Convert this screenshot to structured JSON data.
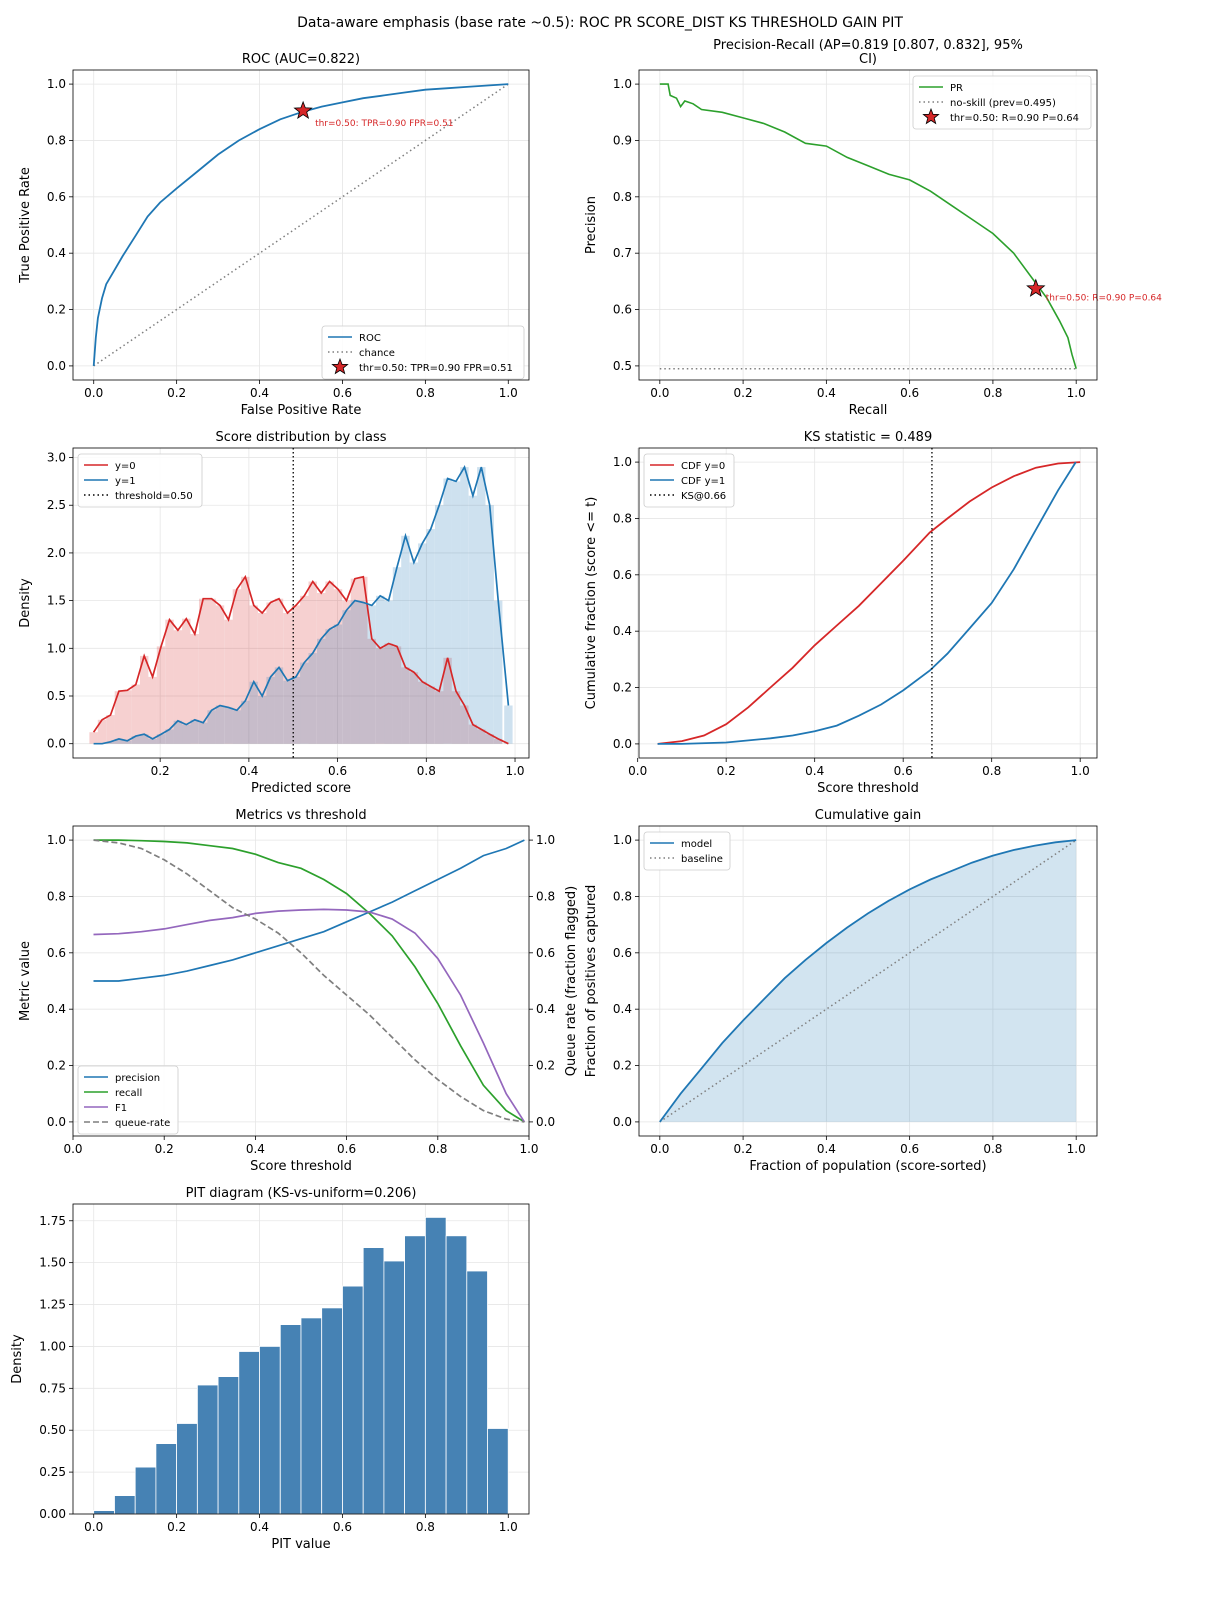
{
  "figure": {
    "suptitle": "Data-aware emphasis (base rate ~0.5): ROC PR SCORE_DIST KS THRESHOLD GAIN PIT",
    "colors": {
      "blue": "#1f77b4",
      "red": "#d62728",
      "green": "#2ca02c",
      "purple": "#9467bd",
      "gray": "#7f7f7f",
      "steel": "#4682b4"
    }
  },
  "chart_data": [
    {
      "id": "roc",
      "type": "line",
      "title": "ROC (AUC=0.822)",
      "xlabel": "False Positive Rate",
      "ylabel": "True Positive Rate",
      "xlim": [
        -0.05,
        1.05
      ],
      "ylim": [
        -0.05,
        1.05
      ],
      "xticks": [
        0.0,
        0.2,
        0.4,
        0.6,
        0.8,
        1.0
      ],
      "yticks": [
        0.0,
        0.2,
        0.4,
        0.6,
        0.8,
        1.0
      ],
      "tick_labels_x": [
        "0.0",
        "0.2",
        "0.4",
        "0.6",
        "0.8",
        "1.0"
      ],
      "tick_labels_y": [
        "0.0",
        "0.2",
        "0.4",
        "0.6",
        "0.8",
        "1.0"
      ],
      "grid": true,
      "legend": "lower-right",
      "series": [
        {
          "name": "ROC",
          "style": "line",
          "color": "#1f77b4",
          "x": [
            0,
            0.005,
            0.01,
            0.02,
            0.03,
            0.05,
            0.07,
            0.1,
            0.13,
            0.16,
            0.2,
            0.25,
            0.3,
            0.35,
            0.4,
            0.45,
            0.5,
            0.55,
            0.6,
            0.65,
            0.7,
            0.75,
            0.8,
            0.85,
            0.9,
            0.95,
            1.0
          ],
          "y": [
            0,
            0.1,
            0.17,
            0.24,
            0.29,
            0.34,
            0.39,
            0.46,
            0.53,
            0.58,
            0.63,
            0.69,
            0.75,
            0.8,
            0.84,
            0.875,
            0.9,
            0.92,
            0.935,
            0.95,
            0.96,
            0.97,
            0.98,
            0.985,
            0.99,
            0.995,
            1.0
          ]
        },
        {
          "name": "chance",
          "style": "dotted",
          "color": "#7f7f7f",
          "x": [
            0,
            1
          ],
          "y": [
            0,
            1
          ]
        }
      ],
      "marker": {
        "name": "thr=0.50: TPR=0.90 FPR=0.51",
        "x": 0.505,
        "y": 0.905,
        "color": "#d62728",
        "annotation": "thr=0.50: TPR=0.90 FPR=0.51"
      }
    },
    {
      "id": "pr",
      "type": "line",
      "title": "Precision-Recall (AP=0.819 [0.807, 0.832], 95%",
      "title_line2": "CI)",
      "xlabel": "Recall",
      "ylabel": "Precision",
      "xlim": [
        -0.05,
        1.05
      ],
      "ylim": [
        0.475,
        1.025
      ],
      "xticks": [
        0.0,
        0.2,
        0.4,
        0.6,
        0.8,
        1.0
      ],
      "yticks": [
        0.5,
        0.6,
        0.7,
        0.8,
        0.9,
        1.0
      ],
      "tick_labels_x": [
        "0.0",
        "0.2",
        "0.4",
        "0.6",
        "0.8",
        "1.0"
      ],
      "tick_labels_y": [
        "0.5",
        "0.6",
        "0.7",
        "0.8",
        "0.9",
        "1.0"
      ],
      "grid": true,
      "legend": "top-right",
      "series": [
        {
          "name": "PR",
          "style": "line",
          "color": "#2ca02c",
          "x": [
            0,
            0.02,
            0.025,
            0.04,
            0.05,
            0.06,
            0.08,
            0.1,
            0.15,
            0.2,
            0.25,
            0.3,
            0.35,
            0.4,
            0.45,
            0.5,
            0.55,
            0.6,
            0.65,
            0.7,
            0.75,
            0.8,
            0.85,
            0.9,
            0.93,
            0.96,
            0.98,
            0.99,
            1.0
          ],
          "y": [
            1.0,
            1.0,
            0.98,
            0.975,
            0.96,
            0.97,
            0.965,
            0.955,
            0.95,
            0.94,
            0.93,
            0.915,
            0.895,
            0.89,
            0.87,
            0.855,
            0.84,
            0.83,
            0.81,
            0.785,
            0.76,
            0.735,
            0.7,
            0.65,
            0.62,
            0.58,
            0.55,
            0.52,
            0.495
          ]
        },
        {
          "name": "no-skill (prev=0.495)",
          "style": "dotted",
          "color": "#7f7f7f",
          "x": [
            0,
            1
          ],
          "y": [
            0.495,
            0.495
          ]
        }
      ],
      "marker": {
        "name": "thr=0.50: R=0.90 P=0.64",
        "x": 0.903,
        "y": 0.637,
        "color": "#d62728",
        "annotation": "thr=0.50: R=0.90 P=0.64"
      }
    },
    {
      "id": "score_dist",
      "type": "area",
      "title": "Score distribution by class",
      "xlabel": "Predicted score",
      "ylabel": "Density",
      "xlim": [
        0.0035,
        1.0315
      ],
      "ylim": [
        -0.15,
        3.1
      ],
      "xticks": [
        0.2,
        0.4,
        0.6,
        0.8,
        1.0
      ],
      "yticks": [
        0.0,
        0.5,
        1.0,
        1.5,
        2.0,
        2.5,
        3.0
      ],
      "tick_labels_x": [
        "0.2",
        "0.4",
        "0.6",
        "0.8",
        "1.0"
      ],
      "tick_labels_y": [
        "0.0",
        "0.5",
        "1.0",
        "1.5",
        "2.0",
        "2.5",
        "3.0"
      ],
      "grid": true,
      "legend": "top-left",
      "x": [
        0.05,
        0.069,
        0.088,
        0.107,
        0.126,
        0.145,
        0.164,
        0.183,
        0.202,
        0.221,
        0.24,
        0.259,
        0.278,
        0.297,
        0.316,
        0.335,
        0.354,
        0.373,
        0.392,
        0.411,
        0.43,
        0.449,
        0.468,
        0.487,
        0.506,
        0.525,
        0.544,
        0.563,
        0.582,
        0.601,
        0.62,
        0.639,
        0.658,
        0.677,
        0.696,
        0.715,
        0.734,
        0.753,
        0.772,
        0.791,
        0.81,
        0.829,
        0.848,
        0.867,
        0.886,
        0.905,
        0.924,
        0.943,
        0.962,
        0.985
      ],
      "series": [
        {
          "name": "y=0",
          "color": "#d62728",
          "values": [
            0.12,
            0.25,
            0.3,
            0.55,
            0.56,
            0.62,
            0.92,
            0.7,
            1.02,
            1.3,
            1.19,
            1.31,
            1.15,
            1.52,
            1.52,
            1.45,
            1.3,
            1.62,
            1.75,
            1.45,
            1.37,
            1.48,
            1.52,
            1.37,
            1.45,
            1.55,
            1.7,
            1.58,
            1.7,
            1.62,
            1.5,
            1.73,
            1.75,
            1.1,
            1.0,
            1.05,
            1.02,
            0.8,
            0.75,
            0.65,
            0.6,
            0.55,
            0.9,
            0.55,
            0.4,
            0.2,
            0.15,
            0.1,
            0.05,
            0.0
          ]
        },
        {
          "name": "y=1",
          "color": "#1f77b4",
          "values": [
            0.0,
            0.0,
            0.02,
            0.05,
            0.03,
            0.08,
            0.1,
            0.05,
            0.1,
            0.15,
            0.24,
            0.2,
            0.25,
            0.22,
            0.35,
            0.4,
            0.38,
            0.35,
            0.45,
            0.65,
            0.5,
            0.7,
            0.8,
            0.66,
            0.7,
            0.85,
            0.95,
            1.1,
            1.2,
            1.25,
            1.4,
            1.5,
            1.48,
            1.45,
            1.55,
            1.5,
            1.85,
            2.18,
            1.9,
            2.1,
            2.25,
            2.5,
            2.78,
            2.75,
            2.9,
            2.6,
            2.9,
            2.5,
            1.5,
            0.4
          ]
        },
        {
          "name": "threshold=0.50",
          "style": "dotted",
          "color": "#000000",
          "x": [
            0.5,
            0.5
          ]
        }
      ]
    },
    {
      "id": "ks",
      "type": "line",
      "title": "KS statistic = 0.489",
      "xlabel": "Score threshold",
      "ylabel": "Cumulative fraction (score <= t)",
      "xlim": [
        0.003,
        1.038
      ],
      "ylim": [
        -0.05,
        1.05
      ],
      "xticks": [
        0.0,
        0.2,
        0.4,
        0.6,
        0.8,
        1.0
      ],
      "yticks": [
        0.0,
        0.2,
        0.4,
        0.6,
        0.8,
        1.0
      ],
      "tick_labels_x": [
        "0.0",
        "0.2",
        "0.4",
        "0.6",
        "0.8",
        "1.0"
      ],
      "tick_labels_y": [
        "0.0",
        "0.2",
        "0.4",
        "0.6",
        "0.8",
        "1.0"
      ],
      "grid": true,
      "legend": "top-left",
      "series": [
        {
          "name": "CDF y=0",
          "color": "#d62728",
          "x": [
            0.045,
            0.1,
            0.15,
            0.2,
            0.25,
            0.3,
            0.35,
            0.4,
            0.45,
            0.5,
            0.55,
            0.6,
            0.66,
            0.7,
            0.75,
            0.8,
            0.85,
            0.9,
            0.95,
            1.0
          ],
          "y": [
            0.0,
            0.01,
            0.03,
            0.07,
            0.13,
            0.2,
            0.27,
            0.35,
            0.42,
            0.49,
            0.57,
            0.65,
            0.75,
            0.8,
            0.86,
            0.91,
            0.95,
            0.98,
            0.995,
            1.0
          ]
        },
        {
          "name": "CDF y=1",
          "color": "#1f77b4",
          "x": [
            0.045,
            0.1,
            0.2,
            0.3,
            0.35,
            0.4,
            0.45,
            0.5,
            0.55,
            0.6,
            0.66,
            0.7,
            0.75,
            0.8,
            0.85,
            0.9,
            0.95,
            0.99
          ],
          "y": [
            0.0,
            0.0,
            0.005,
            0.02,
            0.03,
            0.045,
            0.065,
            0.1,
            0.14,
            0.19,
            0.26,
            0.32,
            0.41,
            0.5,
            0.62,
            0.76,
            0.9,
            1.0
          ]
        },
        {
          "name": "KS@0.66",
          "style": "dotted",
          "color": "#000000",
          "x": [
            0.665,
            0.665
          ]
        }
      ]
    },
    {
      "id": "threshold",
      "type": "line",
      "title": "Metrics vs threshold",
      "xlabel": "Score threshold",
      "ylabel": "Metric value",
      "ylabel_right": "Queue rate (fraction flagged)",
      "xlim": [
        0.0,
        1.0
      ],
      "ylim": [
        -0.05,
        1.05
      ],
      "xticks": [
        0.0,
        0.2,
        0.4,
        0.6,
        0.8,
        1.0
      ],
      "yticks": [
        0.0,
        0.2,
        0.4,
        0.6,
        0.8,
        1.0
      ],
      "tick_labels_x": [
        "0.0",
        "0.2",
        "0.4",
        "0.6",
        "0.8",
        "1.0"
      ],
      "tick_labels_y": [
        "0.0",
        "0.2",
        "0.4",
        "0.6",
        "0.8",
        "1.0"
      ],
      "tick_labels_y_right": [
        "0.0",
        "0.2",
        "0.4",
        "0.6",
        "0.8",
        "1.0"
      ],
      "grid": true,
      "legend": "lower-left",
      "x": [
        0.045,
        0.1,
        0.15,
        0.2,
        0.25,
        0.3,
        0.35,
        0.4,
        0.45,
        0.5,
        0.55,
        0.6,
        0.65,
        0.7,
        0.75,
        0.8,
        0.85,
        0.9,
        0.95,
        0.99
      ],
      "series": [
        {
          "name": "precision",
          "color": "#1f77b4",
          "style": "line",
          "values": [
            0.5,
            0.5,
            0.51,
            0.52,
            0.535,
            0.555,
            0.575,
            0.6,
            0.625,
            0.65,
            0.675,
            0.71,
            0.745,
            0.78,
            0.82,
            0.86,
            0.9,
            0.945,
            0.97,
            1.0
          ]
        },
        {
          "name": "recall",
          "color": "#2ca02c",
          "style": "line",
          "values": [
            1.0,
            1.0,
            0.998,
            0.995,
            0.99,
            0.98,
            0.97,
            0.95,
            0.92,
            0.9,
            0.86,
            0.81,
            0.74,
            0.66,
            0.55,
            0.42,
            0.27,
            0.13,
            0.04,
            0.0
          ]
        },
        {
          "name": "F1",
          "color": "#9467bd",
          "style": "line",
          "values": [
            0.665,
            0.668,
            0.675,
            0.685,
            0.7,
            0.715,
            0.725,
            0.74,
            0.748,
            0.752,
            0.754,
            0.752,
            0.745,
            0.72,
            0.67,
            0.58,
            0.45,
            0.28,
            0.1,
            0.0
          ]
        },
        {
          "name": "queue-rate",
          "color": "#7f7f7f",
          "style": "dashed",
          "values": [
            1.0,
            0.99,
            0.97,
            0.93,
            0.88,
            0.82,
            0.76,
            0.72,
            0.67,
            0.6,
            0.52,
            0.45,
            0.38,
            0.3,
            0.22,
            0.15,
            0.09,
            0.04,
            0.01,
            0.0
          ]
        }
      ]
    },
    {
      "id": "gain",
      "type": "area",
      "title": "Cumulative gain",
      "xlabel": "Fraction of population (score-sorted)",
      "ylabel": "Fraction of positives captured",
      "xlim": [
        -0.05,
        1.05
      ],
      "ylim": [
        -0.05,
        1.05
      ],
      "xticks": [
        0.0,
        0.2,
        0.4,
        0.6,
        0.8,
        1.0
      ],
      "yticks": [
        0.0,
        0.2,
        0.4,
        0.6,
        0.8,
        1.0
      ],
      "tick_labels_x": [
        "0.0",
        "0.2",
        "0.4",
        "0.6",
        "0.8",
        "1.0"
      ],
      "tick_labels_y": [
        "0.0",
        "0.2",
        "0.4",
        "0.6",
        "0.8",
        "1.0"
      ],
      "grid": true,
      "legend": "top-left",
      "series": [
        {
          "name": "model",
          "color": "#1f77b4",
          "x": [
            0,
            0.05,
            0.1,
            0.15,
            0.2,
            0.25,
            0.3,
            0.35,
            0.4,
            0.45,
            0.5,
            0.55,
            0.6,
            0.65,
            0.7,
            0.75,
            0.8,
            0.85,
            0.9,
            0.95,
            1.0
          ],
          "y": [
            0,
            0.1,
            0.19,
            0.28,
            0.36,
            0.435,
            0.51,
            0.575,
            0.635,
            0.69,
            0.74,
            0.785,
            0.825,
            0.86,
            0.89,
            0.92,
            0.945,
            0.965,
            0.98,
            0.992,
            1.0
          ]
        },
        {
          "name": "baseline",
          "color": "#7f7f7f",
          "style": "dotted",
          "x": [
            0,
            1
          ],
          "y": [
            0,
            1
          ]
        }
      ]
    },
    {
      "id": "pit",
      "type": "bar",
      "title": "PIT diagram (KS-vs-uniform=0.206)",
      "xlabel": "PIT value",
      "ylabel": "Density",
      "xlim": [
        -0.05,
        1.05
      ],
      "ylim": [
        0,
        1.85
      ],
      "xticks": [
        0.0,
        0.2,
        0.4,
        0.6,
        0.8,
        1.0
      ],
      "yticks": [
        0.0,
        0.25,
        0.5,
        0.75,
        1.0,
        1.25,
        1.5,
        1.75
      ],
      "tick_labels_x": [
        "0.0",
        "0.2",
        "0.4",
        "0.6",
        "0.8",
        "1.0"
      ],
      "tick_labels_y": [
        "0.00",
        "0.25",
        "0.50",
        "0.75",
        "1.00",
        "1.25",
        "1.50",
        "1.75"
      ],
      "grid": true,
      "color": "#4682b4",
      "bin_edges": [
        0.0,
        0.05,
        0.1,
        0.15,
        0.2,
        0.25,
        0.3,
        0.35,
        0.4,
        0.45,
        0.5,
        0.55,
        0.6,
        0.65,
        0.7,
        0.75,
        0.8,
        0.85,
        0.9,
        0.95,
        1.0
      ],
      "values": [
        0.02,
        0.11,
        0.28,
        0.42,
        0.54,
        0.77,
        0.82,
        0.97,
        1.0,
        1.13,
        1.17,
        1.23,
        1.36,
        1.59,
        1.51,
        1.66,
        1.77,
        1.66,
        1.45,
        0.51
      ]
    }
  ]
}
